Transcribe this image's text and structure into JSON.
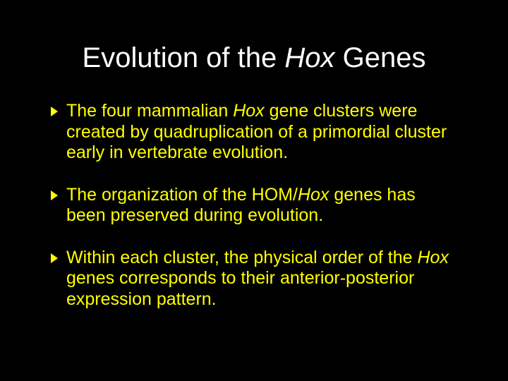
{
  "background_color": "#000000",
  "title": {
    "segments": [
      {
        "text": "Evolution of the ",
        "italic": false
      },
      {
        "text": "Hox",
        "italic": true
      },
      {
        "text": " Genes",
        "italic": false
      }
    ],
    "color": "#ffffff",
    "fontsize": 40
  },
  "bullets": {
    "color": "#ffff00",
    "fontsize": 25,
    "marker_color": "#ffff00",
    "items": [
      {
        "segments": [
          {
            "text": "The four mammalian ",
            "italic": false
          },
          {
            "text": "Hox",
            "italic": true
          },
          {
            "text": " gene clusters were created by quadruplication of a primordial cluster early in vertebrate evolution.",
            "italic": false
          }
        ]
      },
      {
        "segments": [
          {
            "text": "The organization of the HOM/",
            "italic": false
          },
          {
            "text": "Hox",
            "italic": true
          },
          {
            "text": " genes has been preserved during evolution.",
            "italic": false
          }
        ]
      },
      {
        "segments": [
          {
            "text": "Within each cluster, the physical order of the ",
            "italic": false
          },
          {
            "text": "Hox",
            "italic": true
          },
          {
            "text": " genes corresponds to their anterior-posterior expression pattern.",
            "italic": false
          }
        ]
      }
    ]
  }
}
